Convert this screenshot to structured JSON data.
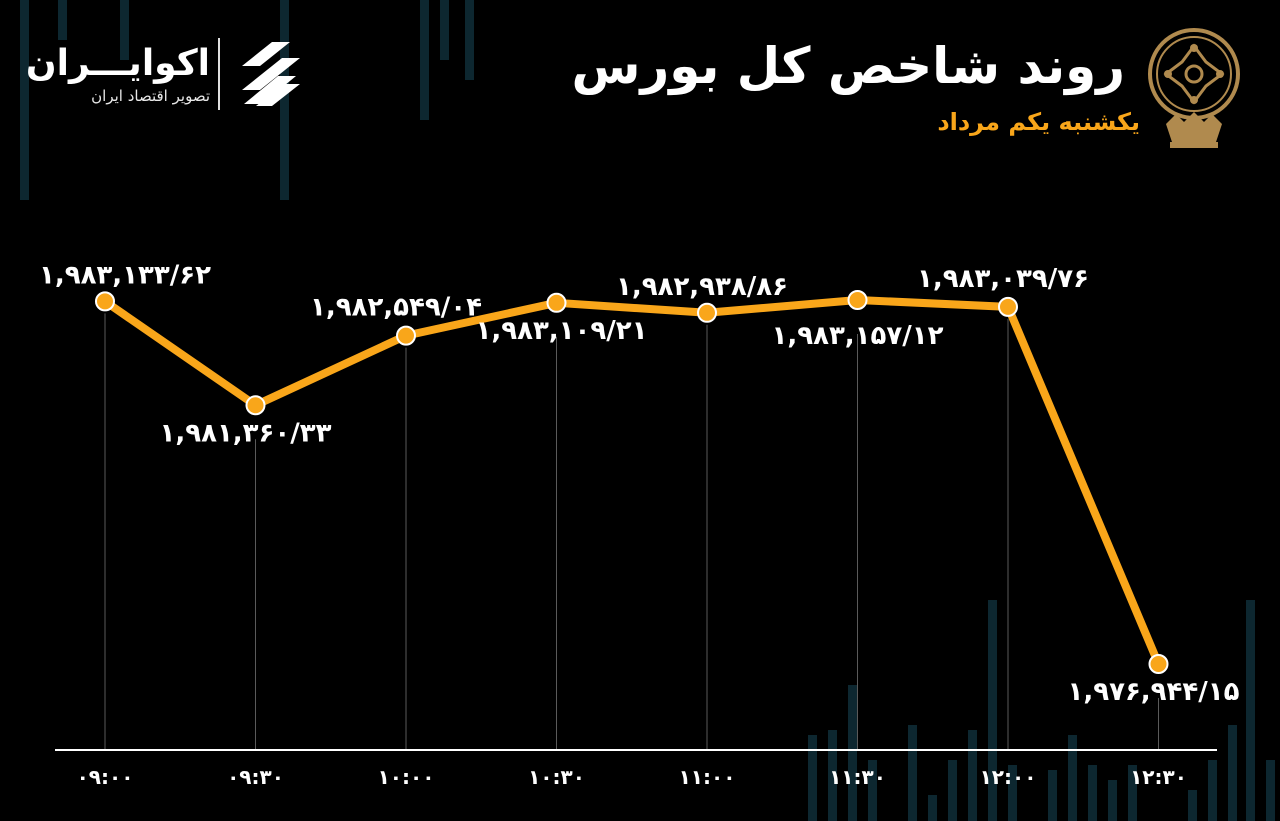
{
  "brand": {
    "name": "اکوایـــران",
    "tagline": "تصویر اقتصاد ایران"
  },
  "header": {
    "title": "روند شاخص کل بورس",
    "subtitle": "یکشنبه یکم مرداد"
  },
  "colors": {
    "background": "#000000",
    "line": "#f9a61a",
    "text": "#ffffff",
    "accent": "#f9a61a",
    "emblem": "#b08a4e",
    "background_bars": "#0d2730"
  },
  "chart_data": {
    "type": "line",
    "categories": [
      "۰۹:۰۰",
      "۰۹:۳۰",
      "۱۰:۰۰",
      "۱۰:۳۰",
      "۱۱:۰۰",
      "۱۱:۳۰",
      "۱۲:۰۰",
      "۱۲:۳۰"
    ],
    "values": [
      1983133.62,
      1981360.33,
      1982549.04,
      1983109.21,
      1982938.86,
      1983157.12,
      1983039.76,
      1976944.15
    ],
    "data_labels": [
      "۱,۹۸۳,۱۳۳/۶۲",
      "۱,۹۸۱,۳۶۰/۳۳",
      "۱,۹۸۲,۵۴۹/۰۴",
      "۱,۹۸۳,۱۰۹/۲۱",
      "۱,۹۸۲,۹۳۸/۸۶",
      "۱,۹۸۳,۱۵۷/۱۲",
      "۱,۹۸۳,۰۳۹/۷۶",
      "۱,۹۷۶,۹۴۴/۱۵"
    ],
    "label_positions": [
      "above",
      "below",
      "above",
      "below",
      "above",
      "below",
      "above",
      "below"
    ],
    "title": "روند شاخص کل بورس",
    "xlabel": "",
    "ylabel": "",
    "grid": false,
    "legend": "none",
    "markers": true
  }
}
